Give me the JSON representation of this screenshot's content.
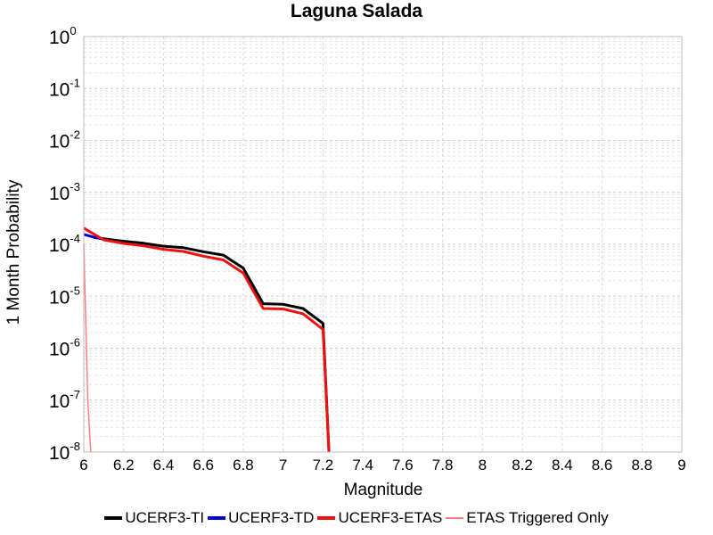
{
  "chart_data": {
    "type": "line",
    "title": "Laguna Salada",
    "xlabel": "Magnitude",
    "ylabel": "1 Month Probability",
    "xlim": [
      6,
      9
    ],
    "ylim": [
      1e-08,
      1
    ],
    "yscale": "log",
    "grid": true,
    "legend_position": "bottom",
    "x_ticks": [
      "6",
      "6.2",
      "6.4",
      "6.6",
      "6.8",
      "7",
      "7.2",
      "7.4",
      "7.6",
      "7.8",
      "8",
      "8.2",
      "8.4",
      "8.6",
      "8.8",
      "9"
    ],
    "y_ticks": [
      {
        "base": "10",
        "exp": "0"
      },
      {
        "base": "10",
        "exp": "-1"
      },
      {
        "base": "10",
        "exp": "-2"
      },
      {
        "base": "10",
        "exp": "-3"
      },
      {
        "base": "10",
        "exp": "-4"
      },
      {
        "base": "10",
        "exp": "-5"
      },
      {
        "base": "10",
        "exp": "-6"
      },
      {
        "base": "10",
        "exp": "-7"
      },
      {
        "base": "10",
        "exp": "-8"
      }
    ],
    "series": [
      {
        "name": "UCERF3-TI",
        "color": "#000000",
        "width": 3,
        "x": [
          6.05,
          6.1,
          6.2,
          6.3,
          6.4,
          6.5,
          6.6,
          6.7,
          6.8,
          6.9,
          7.0,
          7.1,
          7.2,
          7.23
        ],
        "y": [
          0.000135,
          0.000128,
          0.000115,
          0.000105,
          9.2e-05,
          8.6e-05,
          7.2e-05,
          6.2e-05,
          3.5e-05,
          7.2e-06,
          7e-06,
          5.8e-06,
          3e-06,
          1e-08
        ]
      },
      {
        "name": "UCERF3-TD",
        "color": "#0000dd",
        "width": 3,
        "x": [
          6.0,
          6.05,
          6.1
        ],
        "y": [
          0.000155,
          0.000138,
          0.000125
        ]
      },
      {
        "name": "UCERF3-ETAS",
        "color": "#ee1111",
        "width": 3,
        "x": [
          6.0,
          6.1,
          6.2,
          6.3,
          6.4,
          6.5,
          6.6,
          6.7,
          6.8,
          6.9,
          7.0,
          7.1,
          7.2,
          7.23
        ],
        "y": [
          0.000205,
          0.000122,
          0.000104,
          9.4e-05,
          8e-05,
          7.3e-05,
          5.9e-05,
          5e-05,
          2.8e-05,
          5.8e-06,
          5.7e-06,
          4.6e-06,
          2.3e-06,
          1e-08
        ]
      },
      {
        "name": "ETAS Triggered Only",
        "color": "#ff8080",
        "width": 1.5,
        "x": [
          6.0,
          6.02,
          6.035
        ],
        "y": [
          0.0001,
          1e-07,
          1e-08
        ]
      }
    ]
  }
}
